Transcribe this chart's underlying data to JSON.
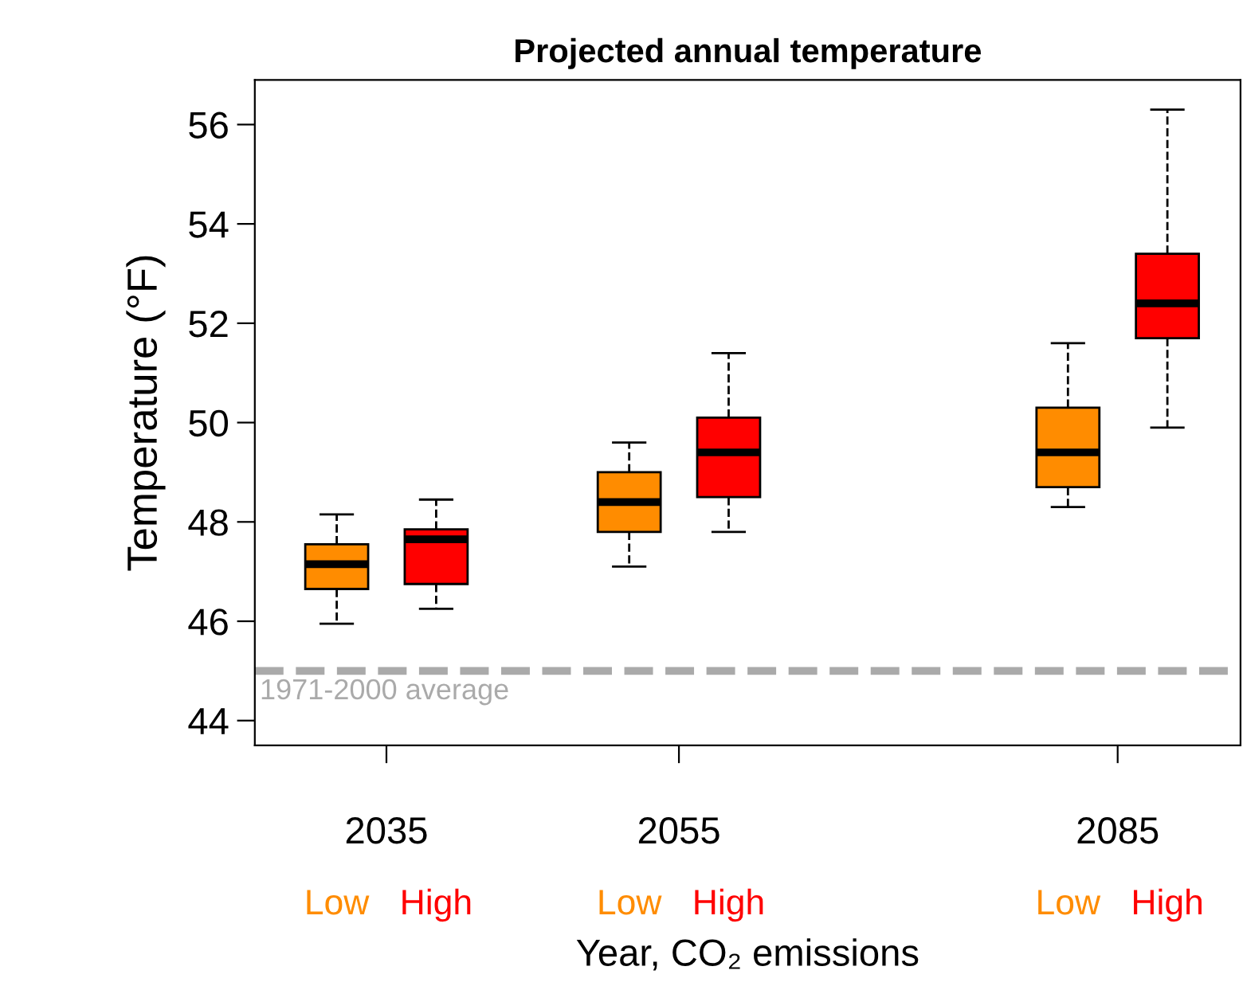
{
  "chart_data": {
    "type": "box",
    "title": "Projected annual temperature",
    "xlabel": "Year, CO₂ emissions",
    "ylabel": "Temperature (°F)",
    "x": [
      2035,
      2055,
      2085
    ],
    "xlim": [
      2026,
      2093.4
    ],
    "xticks": [
      2035,
      2055,
      2085
    ],
    "ylim": [
      43.5,
      56.9
    ],
    "yticks": [
      44,
      46,
      48,
      50,
      52,
      54,
      56
    ],
    "grid": false,
    "legend": "bottom",
    "series": [
      {
        "name": "Low",
        "color": "#ff8c00",
        "boxes": [
          {
            "low": 45.95,
            "q1": 46.65,
            "median": 47.15,
            "q3": 47.55,
            "high": 48.15
          },
          {
            "low": 47.1,
            "q1": 47.8,
            "median": 48.4,
            "q3": 49.0,
            "high": 49.6
          },
          {
            "low": 48.3,
            "q1": 48.7,
            "median": 49.4,
            "q3": 50.3,
            "high": 51.6
          }
        ]
      },
      {
        "name": "High",
        "color": "#ff0000",
        "boxes": [
          {
            "low": 46.25,
            "q1": 46.75,
            "median": 47.65,
            "q3": 47.85,
            "high": 48.45
          },
          {
            "low": 47.8,
            "q1": 48.5,
            "median": 49.4,
            "q3": 50.1,
            "high": 51.4
          },
          {
            "low": 49.9,
            "q1": 51.7,
            "median": 52.4,
            "q3": 53.4,
            "high": 56.3
          }
        ]
      }
    ],
    "ref_lines": [
      {
        "axis": "y",
        "value": 45,
        "label": "1971-2000 average",
        "color": "#aaaaaa",
        "line_style": "dashed"
      }
    ]
  }
}
